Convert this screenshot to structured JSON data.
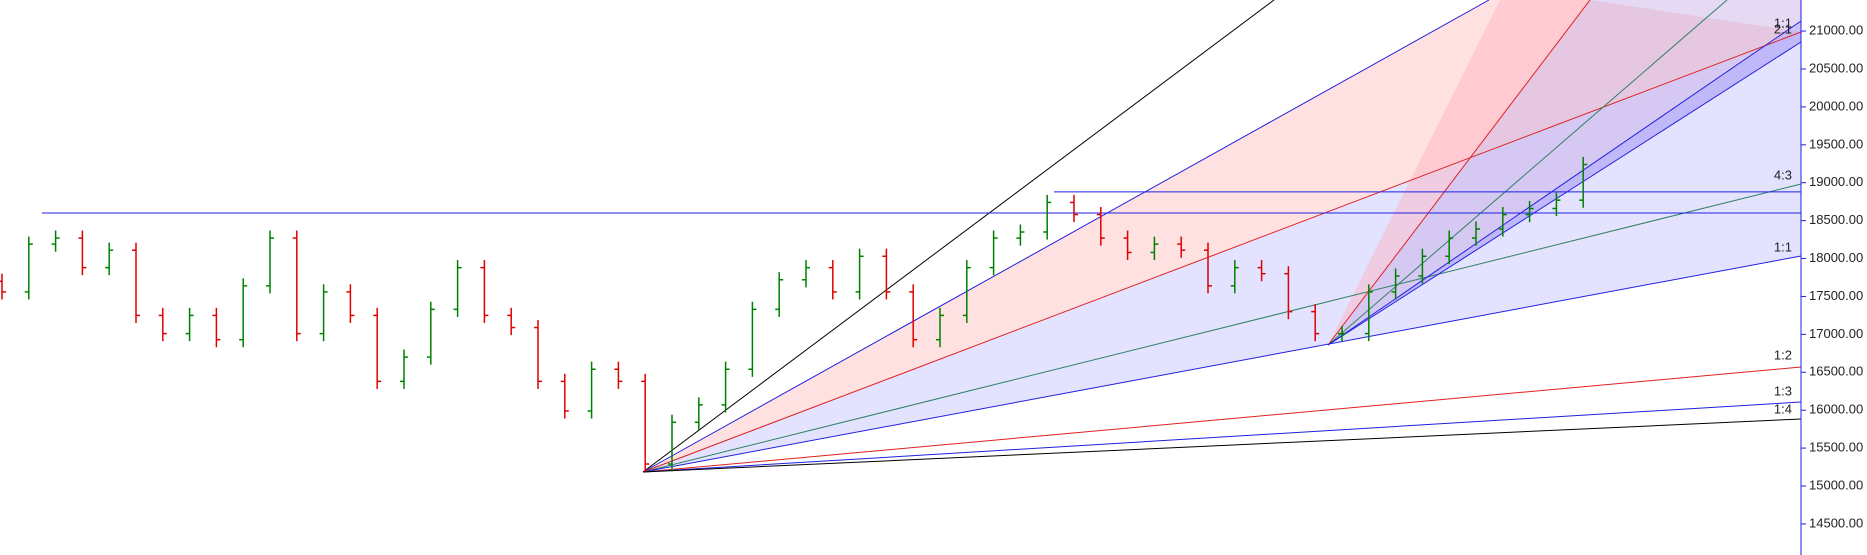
{
  "chart_data": {
    "type": "ohlc",
    "open": [
      17700,
      17560,
      18190,
      18270,
      17880,
      18110,
      17250,
      17010,
      17250,
      16930,
      17640,
      18270,
      17010,
      17560,
      17250,
      16380,
      16700,
      17330,
      17880,
      17250,
      17090,
      16380,
      15990,
      16540,
      16380,
      15290,
      15840,
      16070,
      16540,
      17330,
      17720,
      17880,
      17560,
      18030,
      17560,
      16930,
      17250,
      17880,
      18270,
      18350,
      18740,
      18580,
      18270,
      18080,
      18190,
      18110,
      17640,
      17880,
      17800,
      17300,
      17010,
      17010,
      17560,
      17770,
      18030,
      18270,
      18390,
      18580,
      18660,
      18770
    ],
    "high": [
      17800,
      18290,
      18370,
      18370,
      18210,
      18210,
      17350,
      17350,
      17350,
      17740,
      18370,
      18370,
      17660,
      17660,
      17350,
      16800,
      17430,
      17980,
      17980,
      17350,
      17190,
      16480,
      16640,
      16640,
      16480,
      15940,
      16170,
      16640,
      17430,
      17820,
      17980,
      17980,
      18130,
      18130,
      17660,
      17350,
      17980,
      18370,
      18450,
      18840,
      18840,
      18680,
      18370,
      18290,
      18290,
      18210,
      17980,
      17980,
      17900,
      17400,
      17110,
      17660,
      17870,
      18130,
      18370,
      18490,
      18680,
      18760,
      18870,
      19340
    ],
    "low": [
      17460,
      17460,
      18090,
      17780,
      17780,
      17150,
      16910,
      16910,
      16830,
      16830,
      17540,
      16910,
      16910,
      17150,
      16280,
      16280,
      16600,
      17230,
      17150,
      16990,
      16280,
      15890,
      15890,
      16280,
      15190,
      15190,
      15740,
      15970,
      16440,
      17230,
      17620,
      17460,
      17460,
      17460,
      16830,
      16830,
      17150,
      17780,
      18170,
      18250,
      18480,
      18170,
      17980,
      17980,
      18010,
      17540,
      17540,
      17700,
      17200,
      16910,
      16910,
      16910,
      17460,
      17670,
      17930,
      18170,
      18290,
      18480,
      18560,
      18670
    ],
    "close": [
      17560,
      18190,
      18270,
      17880,
      18110,
      17250,
      17010,
      17250,
      16930,
      17640,
      18270,
      17010,
      17560,
      17250,
      16380,
      16700,
      17330,
      17880,
      17250,
      17090,
      16380,
      15990,
      16540,
      16380,
      15290,
      15840,
      16070,
      16540,
      17330,
      17720,
      17880,
      17560,
      18030,
      17560,
      16930,
      17250,
      17880,
      18270,
      18350,
      18740,
      18580,
      18270,
      18080,
      18190,
      18110,
      17640,
      17880,
      17800,
      17300,
      17010,
      17010,
      17560,
      17770,
      18030,
      18270,
      18390,
      18580,
      18660,
      18770,
      19240
    ],
    "up_color": "#008000",
    "down_color": "#e00000",
    "levels": [
      18600,
      18880
    ],
    "fan_labels": [
      "1:1",
      "2:1",
      "4:3",
      "1:1",
      "1:2",
      "1:3",
      "1:4"
    ],
    "ylim": [
      14090,
      21410
    ],
    "yticks": [
      {
        "value": 14500,
        "label": "14500.00"
      },
      {
        "value": 15000,
        "label": "15000.00"
      },
      {
        "value": 15500,
        "label": "15500.00"
      },
      {
        "value": 16000,
        "label": "16000.00"
      },
      {
        "value": 16500,
        "label": "16500.00"
      },
      {
        "value": 17000,
        "label": "17000.00"
      },
      {
        "value": 17500,
        "label": "17500.00"
      },
      {
        "value": 18000,
        "label": "18000.00"
      },
      {
        "value": 18500,
        "label": "18500.00"
      },
      {
        "value": 19000,
        "label": "19000.00"
      },
      {
        "value": 19500,
        "label": "19500.00"
      },
      {
        "value": 20000,
        "label": "20000.00"
      },
      {
        "value": 20500,
        "label": "20500.00"
      },
      {
        "value": 21000,
        "label": "21000.00"
      }
    ]
  }
}
